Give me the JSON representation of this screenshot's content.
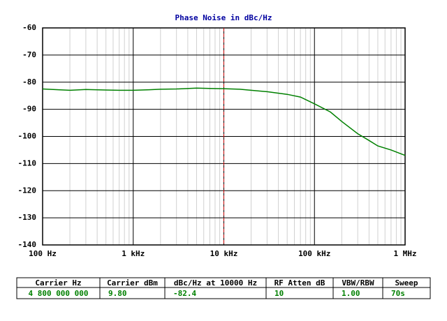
{
  "chart_data": {
    "type": "line",
    "title": "Phase Noise in dBc/Hz",
    "x": [
      100,
      150,
      200,
      300,
      500,
      700,
      1000,
      1500,
      2000,
      3000,
      5000,
      7000,
      10000,
      15000,
      20000,
      30000,
      50000,
      70000,
      100000,
      150000,
      200000,
      300000,
      400000,
      500000,
      700000,
      1000000
    ],
    "values": [
      -82.5,
      -82.8,
      -83,
      -82.7,
      -82.9,
      -83,
      -83,
      -82.8,
      -82.6,
      -82.5,
      -82.2,
      -82.3,
      -82.4,
      -82.6,
      -83,
      -83.5,
      -84.5,
      -85.5,
      -88,
      -91,
      -94.5,
      -99,
      -101.5,
      -103.5,
      -105,
      -107
    ],
    "color": "#008000",
    "xlim": [
      100,
      1000000
    ],
    "xlog": true,
    "xticks": [
      {
        "value": 100,
        "label": "100 Hz"
      },
      {
        "value": 1000,
        "label": "1 kHz"
      },
      {
        "value": 10000,
        "label": "10 kHz"
      },
      {
        "value": 100000,
        "label": "100 kHz"
      },
      {
        "value": 1000000,
        "label": "1 MHz"
      }
    ],
    "ylim": [
      -140,
      -60
    ],
    "yticks": [
      -140,
      -130,
      -120,
      -110,
      -100,
      -90,
      -80,
      -70,
      -60
    ],
    "grid": true,
    "marker": {
      "x": 10000,
      "color": "#c00000"
    }
  },
  "table": {
    "headers": [
      "Carrier Hz",
      "Carrier dBm",
      "dBc/Hz at 10000 Hz",
      "RF Atten dB",
      "VBW/RBW",
      "Sweep"
    ],
    "rows": [
      [
        "4 800 000 000",
        "9.80",
        "-82.4",
        "10",
        "1.00",
        "70s"
      ]
    ]
  }
}
